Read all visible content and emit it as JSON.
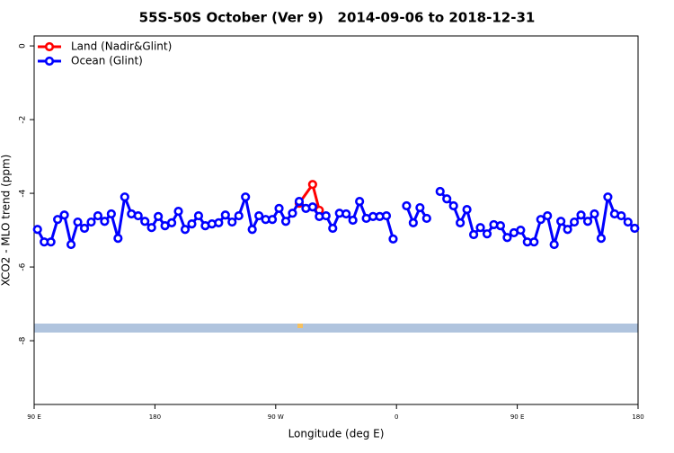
{
  "chart_data": {
    "type": "line",
    "title": "55S-50S October (Ver 9)   2014-09-06 to 2018-12-31",
    "xlabel": "Longitude (deg E)",
    "ylabel": "XCO2 - MLO trend (ppm)",
    "xlim": [
      90,
      540
    ],
    "ylim": [
      -9.73,
      0.27
    ],
    "xticks": [
      {
        "value": 90,
        "label": "90 E"
      },
      {
        "value": 180,
        "label": "180"
      },
      {
        "value": 270,
        "label": "90 W"
      },
      {
        "value": 360,
        "label": "0"
      },
      {
        "value": 450,
        "label": "90 E"
      },
      {
        "value": 540,
        "label": "180"
      }
    ],
    "yticks": [
      0,
      -2,
      -4,
      -6,
      -8
    ],
    "legend": "top-left",
    "series": [
      {
        "name": "Land (Nadir&Glint)",
        "color": "#ff0000",
        "x": [
          287.5,
          297.5,
          302.5
        ],
        "values": [
          -4.27,
          -3.76,
          -4.46
        ]
      },
      {
        "name": "Ocean (Glint)",
        "color": "#0000ff",
        "x": [
          92.5,
          97.5,
          102.5,
          107.5,
          112.5,
          117.5,
          122.5,
          127.5,
          132.5,
          137.5,
          142.5,
          147.5,
          152.5,
          157.5,
          162.5,
          167.5,
          172.5,
          177.5,
          182.5,
          187.5,
          192.5,
          197.5,
          202.5,
          207.5,
          212.5,
          217.5,
          222.5,
          227.5,
          232.5,
          237.5,
          242.5,
          247.5,
          252.5,
          257.5,
          262.5,
          267.5,
          272.5,
          277.5,
          282.5,
          287.5,
          292.5,
          297.5,
          302.5,
          307.5,
          312.5,
          317.5,
          322.5,
          327.5,
          332.5,
          337.5,
          342.5,
          347.5,
          352.5,
          357.5,
          362.5,
          367.5,
          372.5,
          377.5,
          382.5,
          387.5,
          392.5,
          397.5,
          402.5,
          407.5,
          412.5,
          417.5,
          422.5,
          427.5,
          432.5,
          437.5,
          442.5,
          447.5,
          452.5,
          457.5,
          462.5,
          467.5,
          472.5,
          477.5,
          482.5,
          487.5,
          492.5,
          497.5,
          502.5,
          507.5,
          512.5,
          517.5,
          522.5,
          527.5,
          532.5,
          537.5
        ],
        "values": [
          -4.98,
          -5.32,
          -5.32,
          -4.71,
          -4.59,
          -5.39,
          -4.78,
          -4.95,
          -4.78,
          -4.61,
          -4.76,
          -4.56,
          -5.22,
          -4.1,
          -4.56,
          -4.61,
          -4.76,
          -4.93,
          -4.63,
          -4.88,
          -4.8,
          -4.49,
          -4.98,
          -4.83,
          -4.61,
          -4.88,
          -4.83,
          -4.8,
          -4.59,
          -4.78,
          -4.61,
          -4.1,
          -4.98,
          -4.61,
          -4.71,
          -4.71,
          -4.41,
          -4.76,
          -4.54,
          -4.22,
          -4.41,
          -4.37,
          -4.63,
          -4.61,
          -4.95,
          -4.54,
          -4.56,
          -4.73,
          -4.22,
          -4.68,
          -4.63,
          -4.63,
          -4.61,
          -5.24,
          null,
          -4.34,
          -4.8,
          -4.39,
          -4.68,
          null,
          -3.95,
          -4.15,
          -4.34,
          -4.8,
          -4.44,
          -5.12,
          -4.93,
          -5.1,
          -4.85,
          -4.88,
          -5.2,
          -5.07,
          -5.0,
          -5.32,
          -5.32,
          -4.71,
          -4.61,
          -5.39,
          -4.76,
          -4.98,
          -4.78,
          -4.59,
          -4.76,
          -4.56,
          -5.22,
          -4.1,
          -4.56,
          -4.61,
          -4.78,
          -4.95
        ]
      }
    ]
  }
}
